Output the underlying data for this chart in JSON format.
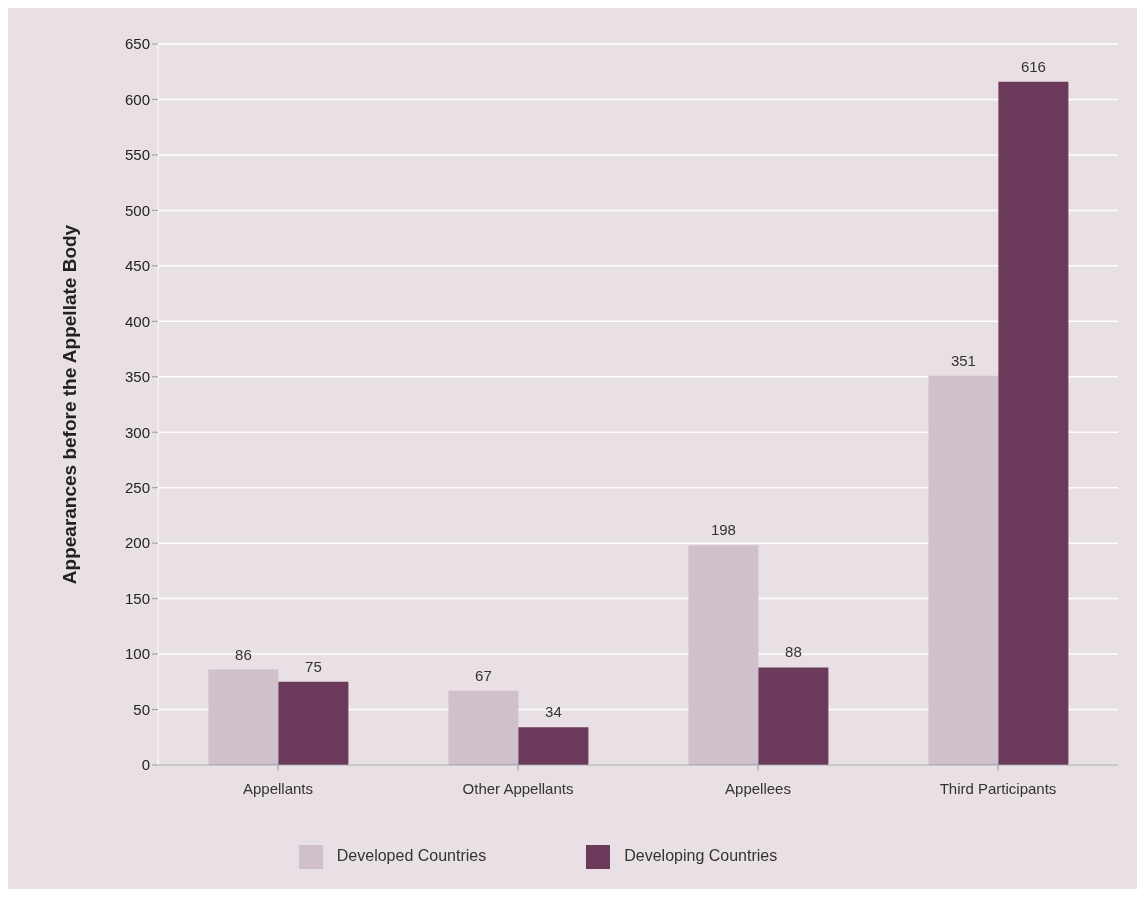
{
  "chart_data": {
    "type": "bar",
    "ylabel": "Appearances before the Appellate Body",
    "categories": [
      "Appellants",
      "Other Appellants",
      "Appellees",
      "Third Participants"
    ],
    "series": [
      {
        "name": "Developed Countries",
        "color": "#cfc0cc",
        "values": [
          86,
          67,
          198,
          351
        ]
      },
      {
        "name": "Developing Countries",
        "color": "#6b3a5a",
        "values": [
          75,
          34,
          88,
          616
        ]
      }
    ],
    "ylim": [
      0,
      650
    ],
    "yticks": [
      0,
      50,
      100,
      150,
      200,
      250,
      300,
      350,
      400,
      450,
      500,
      550,
      600,
      650
    ],
    "grid": "y",
    "legend": "bottom",
    "data_labels": true
  }
}
